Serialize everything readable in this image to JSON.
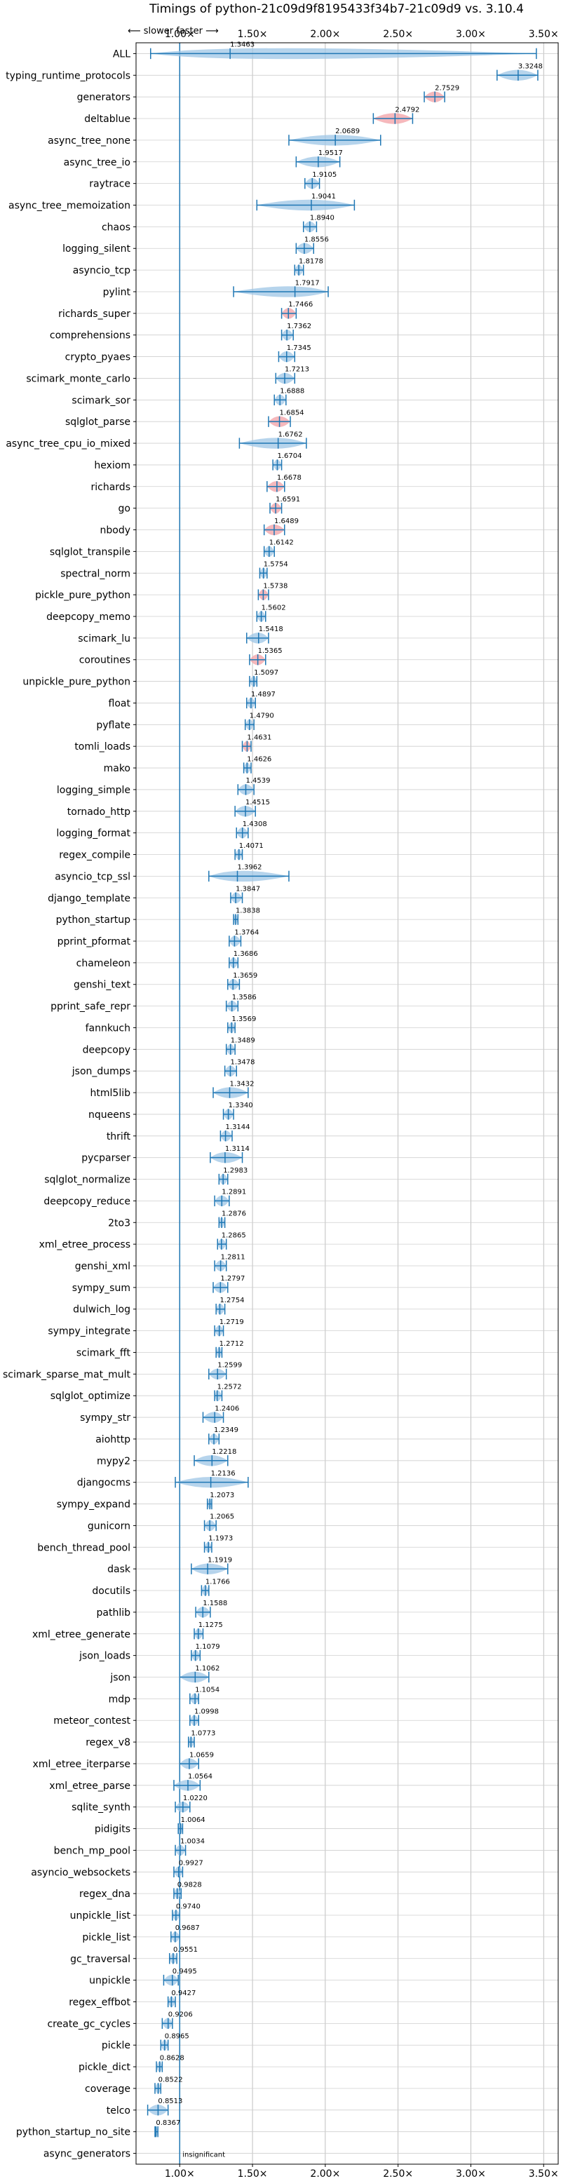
{
  "chart_data": {
    "type": "violin",
    "title": "Timings of python-21c09d9f8195433f34b7-21c09d9 vs. 3.10.4",
    "direction_label": "⟵ slower    faster ⟶",
    "xlim": [
      0.7,
      3.6
    ],
    "xticks": [
      1.0,
      1.5,
      2.0,
      2.5,
      3.0,
      3.5
    ],
    "xtick_labels": [
      "1.00×",
      "1.50×",
      "2.00×",
      "2.50×",
      "3.00×",
      "3.50×"
    ],
    "reference_x": 1.0,
    "grid": true,
    "colors": {
      "faster": "#1f77b4",
      "slower": "#d62728",
      "fill_faster": "#9ec5e6",
      "fill_slower": "#f2a0a6"
    },
    "categories": [
      "ALL",
      "typing_runtime_protocols",
      "generators",
      "deltablue",
      "async_tree_none",
      "async_tree_io",
      "raytrace",
      "async_tree_memoization",
      "chaos",
      "logging_silent",
      "asyncio_tcp",
      "pylint",
      "richards_super",
      "comprehensions",
      "crypto_pyaes",
      "scimark_monte_carlo",
      "scimark_sor",
      "sqlglot_parse",
      "async_tree_cpu_io_mixed",
      "hexiom",
      "richards",
      "go",
      "nbody",
      "sqlglot_transpile",
      "spectral_norm",
      "pickle_pure_python",
      "deepcopy_memo",
      "scimark_lu",
      "coroutines",
      "unpickle_pure_python",
      "float",
      "pyflate",
      "tomli_loads",
      "mako",
      "logging_simple",
      "tornado_http",
      "logging_format",
      "regex_compile",
      "asyncio_tcp_ssl",
      "django_template",
      "python_startup",
      "pprint_pformat",
      "chameleon",
      "genshi_text",
      "pprint_safe_repr",
      "fannkuch",
      "deepcopy",
      "json_dumps",
      "html5lib",
      "nqueens",
      "thrift",
      "pycparser",
      "sqlglot_normalize",
      "deepcopy_reduce",
      "2to3",
      "xml_etree_process",
      "genshi_xml",
      "sympy_sum",
      "dulwich_log",
      "sympy_integrate",
      "scimark_fft",
      "scimark_sparse_mat_mult",
      "sqlglot_optimize",
      "sympy_str",
      "aiohttp",
      "mypy2",
      "djangocms",
      "sympy_expand",
      "gunicorn",
      "bench_thread_pool",
      "dask",
      "docutils",
      "pathlib",
      "xml_etree_generate",
      "json_loads",
      "json",
      "mdp",
      "meteor_contest",
      "regex_v8",
      "xml_etree_iterparse",
      "xml_etree_parse",
      "sqlite_synth",
      "pidigits",
      "bench_mp_pool",
      "asyncio_websockets",
      "regex_dna",
      "unpickle_list",
      "pickle_list",
      "gc_traversal",
      "unpickle",
      "regex_effbot",
      "create_gc_cycles",
      "pickle",
      "pickle_dict",
      "coverage",
      "telco",
      "python_startup_no_site",
      "async_generators"
    ],
    "values": [
      1.3463,
      3.3248,
      2.7529,
      2.4792,
      2.0689,
      1.9517,
      1.9105,
      1.9041,
      1.894,
      1.8556,
      1.8178,
      1.7917,
      1.7466,
      1.7362,
      1.7345,
      1.7213,
      1.6888,
      1.6854,
      1.6762,
      1.6704,
      1.6678,
      1.6591,
      1.6489,
      1.6142,
      1.5754,
      1.5738,
      1.5602,
      1.5418,
      1.5365,
      1.5097,
      1.4897,
      1.479,
      1.4631,
      1.4626,
      1.4539,
      1.4515,
      1.4308,
      1.4071,
      1.3962,
      1.3847,
      1.3838,
      1.3764,
      1.3686,
      1.3659,
      1.3586,
      1.3569,
      1.3489,
      1.3478,
      1.3432,
      1.334,
      1.3144,
      1.3114,
      1.2983,
      1.2891,
      1.2876,
      1.2865,
      1.2811,
      1.2797,
      1.2754,
      1.2719,
      1.2712,
      1.2599,
      1.2572,
      1.2406,
      1.2349,
      1.2218,
      1.2136,
      1.2073,
      1.2065,
      1.1973,
      1.1919,
      1.1766,
      1.1588,
      1.1275,
      1.1079,
      1.1062,
      1.1054,
      1.0998,
      1.0773,
      1.0659,
      1.0564,
      1.022,
      1.0064,
      1.0034,
      0.9927,
      0.9828,
      0.974,
      0.9687,
      0.9551,
      0.9495,
      0.9427,
      0.9206,
      0.8965,
      0.8628,
      0.8522,
      0.8513,
      0.8367,
      null
    ],
    "value_labels": [
      "1.3463",
      "3.3248",
      "2.7529",
      "2.4792",
      "2.0689",
      "1.9517",
      "1.9105",
      "1.9041",
      "1.8940",
      "1.8556",
      "1.8178",
      "1.7917",
      "1.7466",
      "1.7362",
      "1.7345",
      "1.7213",
      "1.6888",
      "1.6854",
      "1.6762",
      "1.6704",
      "1.6678",
      "1.6591",
      "1.6489",
      "1.6142",
      "1.5754",
      "1.5738",
      "1.5602",
      "1.5418",
      "1.5365",
      "1.5097",
      "1.4897",
      "1.4790",
      "1.4631",
      "1.4626",
      "1.4539",
      "1.4515",
      "1.4308",
      "1.4071",
      "1.3962",
      "1.3847",
      "1.3838",
      "1.3764",
      "1.3686",
      "1.3659",
      "1.3586",
      "1.3569",
      "1.3489",
      "1.3478",
      "1.3432",
      "1.3340",
      "1.3144",
      "1.3114",
      "1.2983",
      "1.2891",
      "1.2876",
      "1.2865",
      "1.2811",
      "1.2797",
      "1.2754",
      "1.2719",
      "1.2712",
      "1.2599",
      "1.2572",
      "1.2406",
      "1.2349",
      "1.2218",
      "1.2136",
      "1.2073",
      "1.2065",
      "1.1973",
      "1.1919",
      "1.1766",
      "1.1588",
      "1.1275",
      "1.1079",
      "1.1062",
      "1.1054",
      "1.0998",
      "1.0773",
      "1.0659",
      "1.0564",
      "1.0220",
      "1.0064",
      "1.0034",
      "0.9927",
      "0.9828",
      "0.9740",
      "0.9687",
      "0.9551",
      "0.9495",
      "0.9427",
      "0.9206",
      "0.8965",
      "0.8628",
      "0.8522",
      "0.8513",
      "0.8367",
      "insignificant"
    ],
    "ranges": [
      [
        0.8,
        3.45
      ],
      [
        3.18,
        3.46
      ],
      [
        2.68,
        2.82
      ],
      [
        2.33,
        2.6
      ],
      [
        1.75,
        2.38
      ],
      [
        1.8,
        2.1
      ],
      [
        1.86,
        1.96
      ],
      [
        1.53,
        2.2
      ],
      [
        1.85,
        1.94
      ],
      [
        1.8,
        1.92
      ],
      [
        1.79,
        1.85
      ],
      [
        1.37,
        2.02
      ],
      [
        1.7,
        1.8
      ],
      [
        1.7,
        1.78
      ],
      [
        1.68,
        1.79
      ],
      [
        1.66,
        1.79
      ],
      [
        1.65,
        1.73
      ],
      [
        1.61,
        1.76
      ],
      [
        1.41,
        1.87
      ],
      [
        1.64,
        1.7
      ],
      [
        1.6,
        1.72
      ],
      [
        1.62,
        1.7
      ],
      [
        1.58,
        1.72
      ],
      [
        1.58,
        1.65
      ],
      [
        1.55,
        1.6
      ],
      [
        1.54,
        1.61
      ],
      [
        1.53,
        1.59
      ],
      [
        1.46,
        1.61
      ],
      [
        1.48,
        1.59
      ],
      [
        1.48,
        1.53
      ],
      [
        1.46,
        1.52
      ],
      [
        1.45,
        1.51
      ],
      [
        1.43,
        1.49
      ],
      [
        1.44,
        1.49
      ],
      [
        1.4,
        1.51
      ],
      [
        1.38,
        1.52
      ],
      [
        1.39,
        1.47
      ],
      [
        1.38,
        1.43
      ],
      [
        1.2,
        1.75
      ],
      [
        1.35,
        1.43
      ],
      [
        1.37,
        1.4
      ],
      [
        1.34,
        1.42
      ],
      [
        1.34,
        1.4
      ],
      [
        1.33,
        1.41
      ],
      [
        1.32,
        1.4
      ],
      [
        1.33,
        1.38
      ],
      [
        1.32,
        1.38
      ],
      [
        1.31,
        1.39
      ],
      [
        1.23,
        1.47
      ],
      [
        1.3,
        1.37
      ],
      [
        1.28,
        1.36
      ],
      [
        1.21,
        1.43
      ],
      [
        1.27,
        1.33
      ],
      [
        1.24,
        1.34
      ],
      [
        1.27,
        1.31
      ],
      [
        1.26,
        1.32
      ],
      [
        1.24,
        1.32
      ],
      [
        1.23,
        1.33
      ],
      [
        1.25,
        1.31
      ],
      [
        1.24,
        1.3
      ],
      [
        1.25,
        1.29
      ],
      [
        1.2,
        1.32
      ],
      [
        1.24,
        1.29
      ],
      [
        1.16,
        1.3
      ],
      [
        1.2,
        1.27
      ],
      [
        1.1,
        1.33
      ],
      [
        0.97,
        1.47
      ],
      [
        1.19,
        1.22
      ],
      [
        1.17,
        1.25
      ],
      [
        1.17,
        1.22
      ],
      [
        1.08,
        1.33
      ],
      [
        1.15,
        1.2
      ],
      [
        1.11,
        1.21
      ],
      [
        1.1,
        1.16
      ],
      [
        1.08,
        1.14
      ],
      [
        1.0,
        1.2
      ],
      [
        1.07,
        1.13
      ],
      [
        1.07,
        1.13
      ],
      [
        1.06,
        1.1
      ],
      [
        1.0,
        1.13
      ],
      [
        0.96,
        1.14
      ],
      [
        0.97,
        1.07
      ],
      [
        0.99,
        1.02
      ],
      [
        0.97,
        1.04
      ],
      [
        0.96,
        1.02
      ],
      [
        0.96,
        1.01
      ],
      [
        0.95,
        1.0
      ],
      [
        0.94,
        1.0
      ],
      [
        0.93,
        0.98
      ],
      [
        0.89,
        0.99
      ],
      [
        0.92,
        0.97
      ],
      [
        0.88,
        0.95
      ],
      [
        0.87,
        0.92
      ],
      [
        0.84,
        0.88
      ],
      [
        0.83,
        0.87
      ],
      [
        0.78,
        0.92
      ],
      [
        0.83,
        0.85
      ],
      [
        null,
        null
      ]
    ]
  }
}
